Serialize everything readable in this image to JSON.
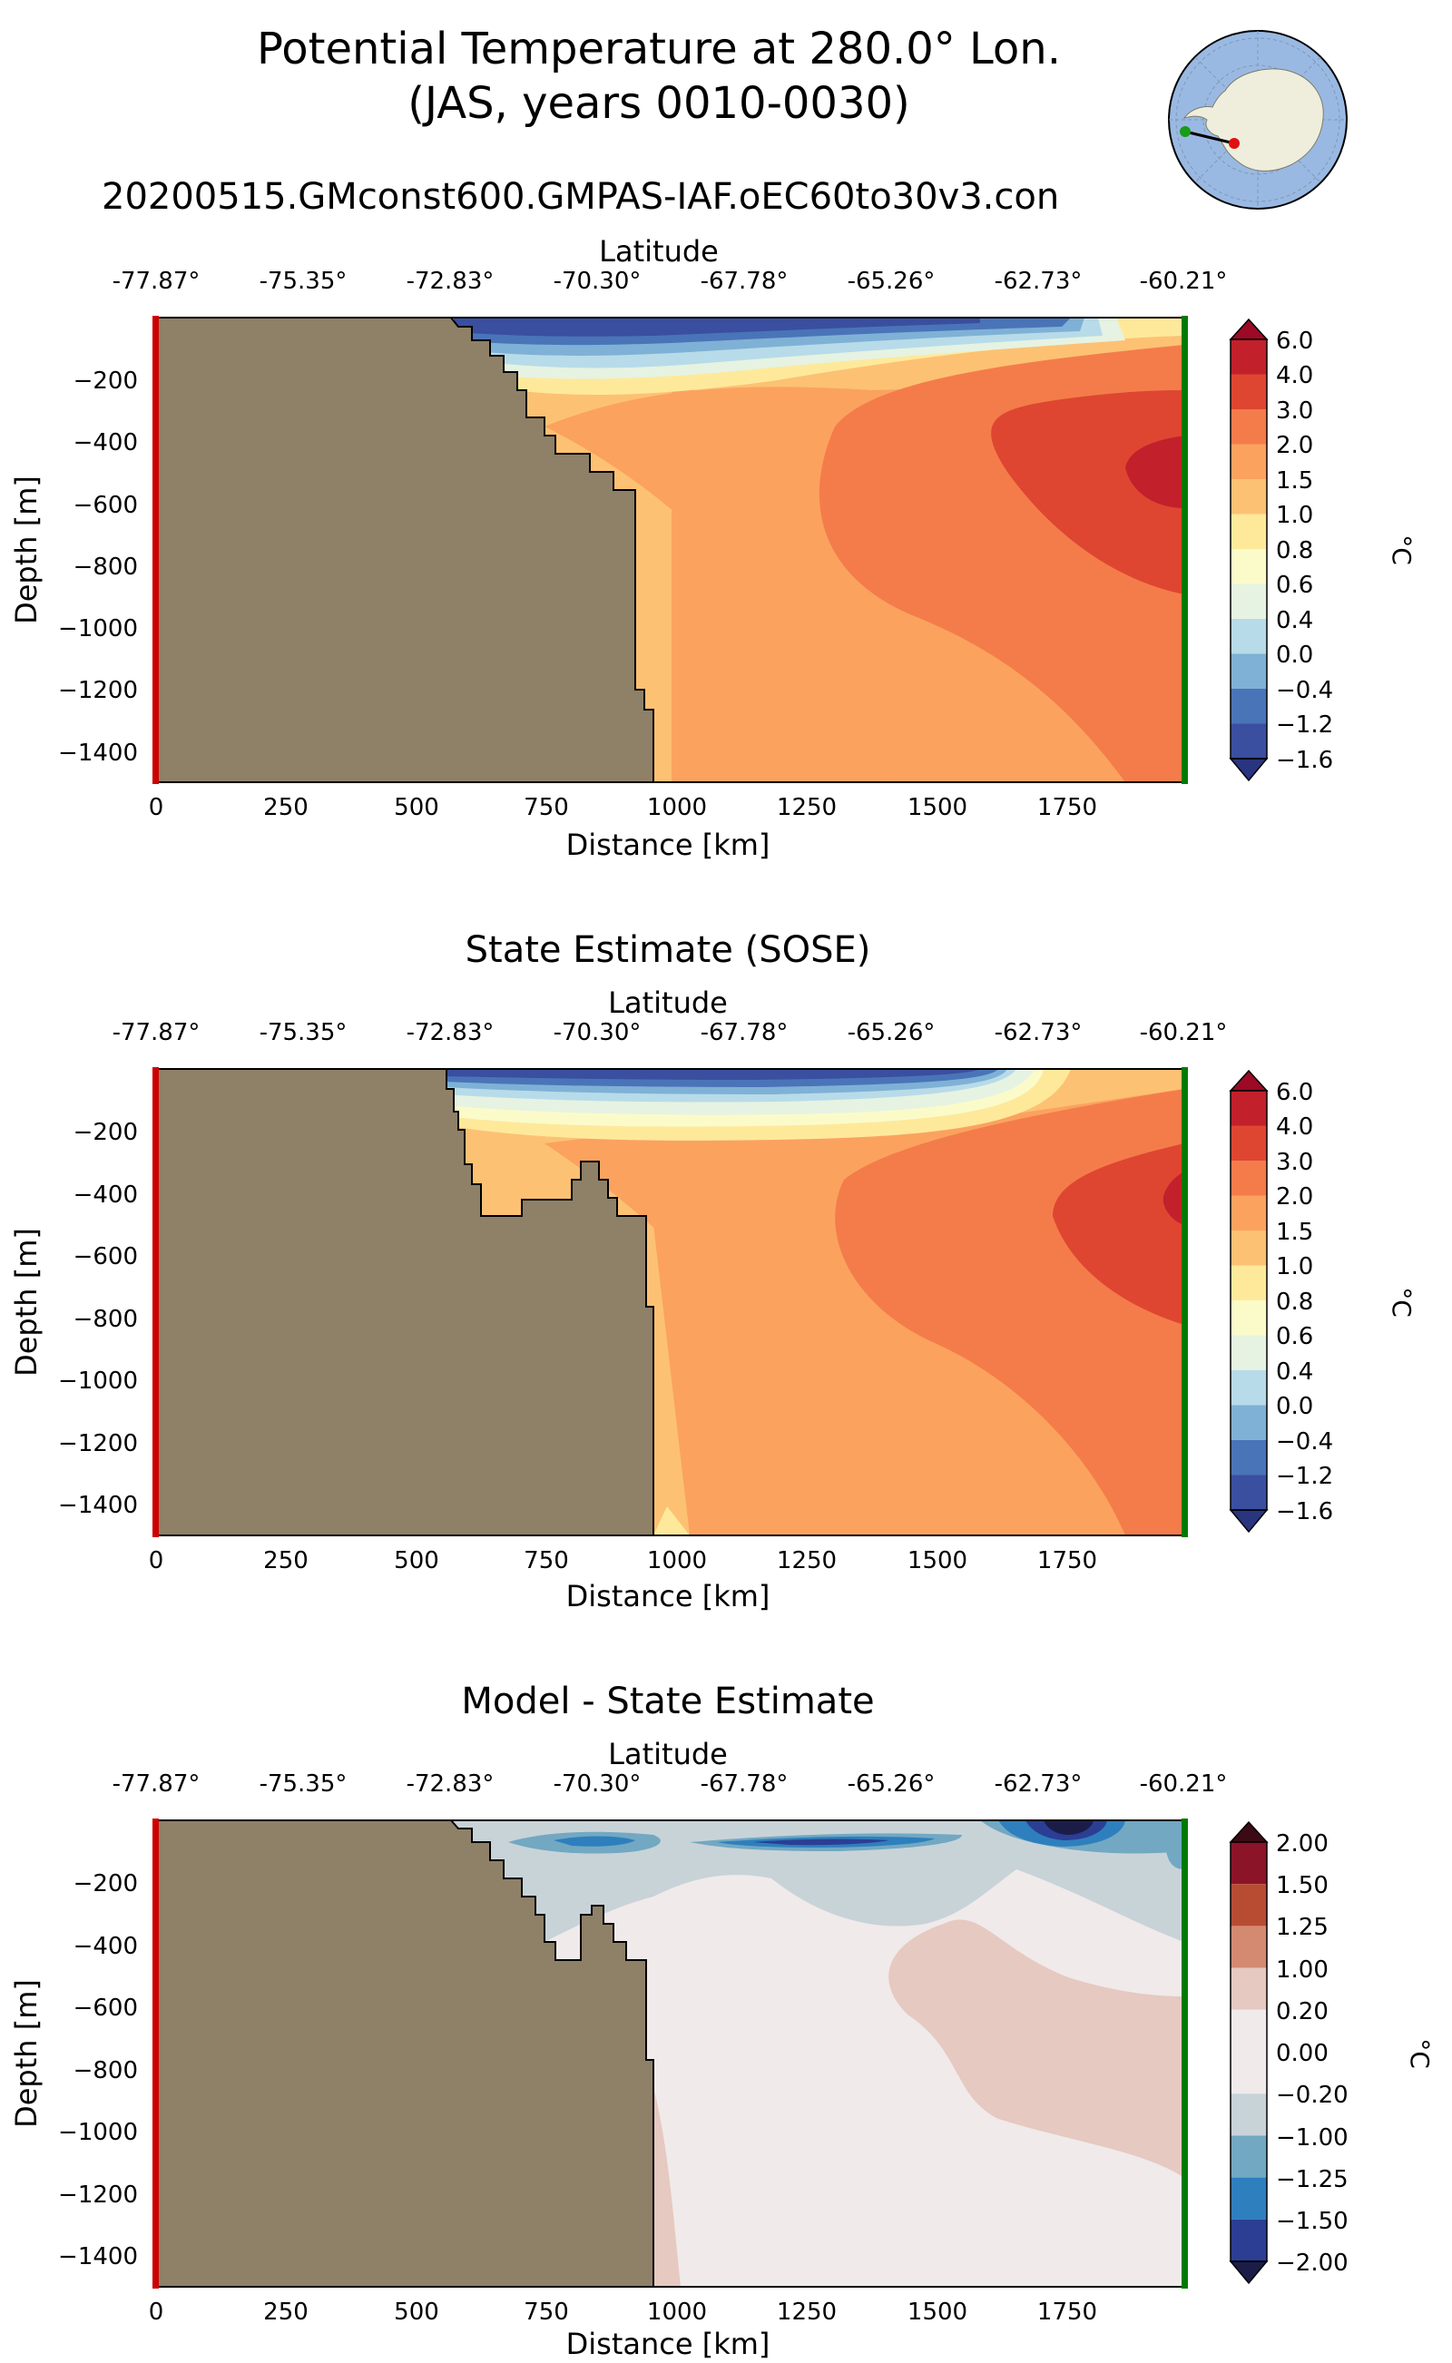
{
  "header": {
    "title_line1": "Potential Temperature at 280.0° Lon.",
    "title_line2": "(JAS, years 0010-0030)",
    "run_name": "20200515.GMconst600.GMPAS-IAF.oEC60to30v3.con"
  },
  "axes": {
    "top_label": "Latitude",
    "top_ticks": [
      "-77.87°",
      "-75.35°",
      "-72.83°",
      "-70.30°",
      "-67.78°",
      "-65.26°",
      "-62.73°",
      "-60.21°"
    ],
    "x_label": "Distance [km]",
    "x_ticks": [
      "0",
      "250",
      "500",
      "750",
      "1000",
      "1250",
      "1500",
      "1750"
    ],
    "y_label": "Depth [m]",
    "y_ticks": [
      "−200",
      "−400",
      "−600",
      "−800",
      "−1000",
      "−1200",
      "−1400"
    ]
  },
  "panels": {
    "model": {
      "title": "",
      "colorbar_unit": "°C",
      "colorbar_labels": [
        "6.0",
        "4.0",
        "3.0",
        "2.0",
        "1.5",
        "1.0",
        "0.8",
        "0.6",
        "0.4",
        "0.0",
        "−0.4",
        "−1.2",
        "−1.6"
      ]
    },
    "sose": {
      "title": "State Estimate (SOSE)",
      "colorbar_unit": "°C",
      "colorbar_labels": [
        "6.0",
        "4.0",
        "3.0",
        "2.0",
        "1.5",
        "1.0",
        "0.8",
        "0.6",
        "0.4",
        "0.0",
        "−0.4",
        "−1.2",
        "−1.6"
      ]
    },
    "diff": {
      "title": "Model - State Estimate",
      "colorbar_unit": "°C",
      "colorbar_labels": [
        "2.00",
        "1.50",
        "1.25",
        "1.00",
        "0.20",
        "0.00",
        "−0.20",
        "−1.00",
        "−1.25",
        "−1.50",
        "−2.00"
      ]
    }
  },
  "colors": {
    "land": "#8f8068",
    "start_marker": "#cc0000",
    "end_marker": "#007a00",
    "temp_cmap": [
      "#3a4fa0",
      "#4a74b8",
      "#7fb1d6",
      "#b8dbe9",
      "#e6f3e2",
      "#fbfbca",
      "#fee99b",
      "#fdc173",
      "#fba25f",
      "#f47c4a",
      "#de4631",
      "#c2202b",
      "#9c0a25"
    ],
    "diff_cmap": [
      "#2b3e94",
      "#2e7fbd",
      "#72a8c2",
      "#c8d3d8",
      "#f0eaea",
      "#e6c9c0",
      "#d48a70",
      "#b84c32",
      "#8c1428"
    ],
    "globe_ocean": "#9ab9e2",
    "globe_land": "#efeedd"
  },
  "chart_data": [
    {
      "type": "heatmap",
      "title": "Potential Temperature at 280.0° Lon. (JAS, years 0010-0030)",
      "xlabel": "Distance [km]",
      "ylabel": "Depth [m]",
      "xlim": [
        0,
        1975
      ],
      "ylim": [
        -1500,
        0
      ],
      "contour_levels": [
        -1.6,
        -1.2,
        -0.4,
        0.0,
        0.4,
        0.6,
        0.8,
        1.0,
        1.5,
        2.0,
        3.0,
        4.0,
        6.0
      ],
      "bathymetry": {
        "x": [
          0,
          570,
          620,
          700,
          780,
          850,
          930,
          960
        ],
        "depth": [
          0,
          -80,
          -200,
          -400,
          -520,
          -600,
          -1230,
          -1500
        ]
      },
      "features": [
        {
          "x": [
            580,
            1600
          ],
          "depth": [
            0,
            -60
          ],
          "value": -1.6
        },
        {
          "x": [
            700,
            1900
          ],
          "depth": [
            -120,
            -260
          ],
          "value": 1.5
        },
        {
          "x": [
            1700,
            1975
          ],
          "depth": [
            -250,
            -900
          ],
          "value": 4.0
        },
        {
          "x": [
            1850,
            1975
          ],
          "depth": [
            -400,
            -600
          ],
          "value": 5.0
        }
      ]
    },
    {
      "type": "heatmap",
      "title": "State Estimate (SOSE)",
      "xlabel": "Distance [km]",
      "ylabel": "Depth [m]",
      "xlim": [
        0,
        1975
      ],
      "ylim": [
        -1500,
        0
      ],
      "contour_levels": [
        -1.6,
        -1.2,
        -0.4,
        0.0,
        0.4,
        0.6,
        0.8,
        1.0,
        1.5,
        2.0,
        3.0,
        4.0,
        6.0
      ],
      "bathymetry": {
        "x": [
          0,
          560,
          620,
          700,
          800,
          850,
          900,
          950,
          970
        ],
        "depth": [
          0,
          -80,
          -300,
          -480,
          -320,
          -420,
          -500,
          -780,
          -1500
        ]
      },
      "features": [
        {
          "x": [
            560,
            1650
          ],
          "depth": [
            0,
            -80
          ],
          "value": -1.6
        },
        {
          "x": [
            700,
            1700
          ],
          "depth": [
            -100,
            -220
          ],
          "value": 0.6
        },
        {
          "x": [
            1700,
            1975
          ],
          "depth": [
            -300,
            -820
          ],
          "value": 4.0
        }
      ]
    },
    {
      "type": "heatmap",
      "title": "Model - State Estimate",
      "xlabel": "Distance [km]",
      "ylabel": "Depth [m]",
      "xlim": [
        0,
        1975
      ],
      "ylim": [
        -1500,
        0
      ],
      "contour_levels": [
        -2.0,
        -1.5,
        -1.25,
        -1.0,
        -0.2,
        0.0,
        0.2,
        1.0,
        1.25,
        1.5,
        2.0
      ],
      "features": [
        {
          "x": [
            700,
            1975
          ],
          "depth": [
            0,
            -380
          ],
          "value": -1.0
        },
        {
          "x": [
            1100,
            1400
          ],
          "depth": [
            -60,
            -90
          ],
          "value": -1.5
        },
        {
          "x": [
            1650,
            1750
          ],
          "depth": [
            0,
            -80
          ],
          "value": -2.0
        },
        {
          "x": [
            1400,
            1975
          ],
          "depth": [
            -250,
            -900
          ],
          "value": 0.2
        }
      ]
    }
  ]
}
